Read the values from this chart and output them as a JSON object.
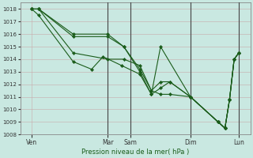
{
  "xlabel": "Pression niveau de la mer( hPa )",
  "bg_color": "#c9e8e1",
  "line_color": "#1a5c1a",
  "marker_color": "#1a5c1a",
  "ylim": [
    1008,
    1018.5
  ],
  "yticks": [
    1008,
    1009,
    1010,
    1011,
    1012,
    1013,
    1014,
    1015,
    1016,
    1017,
    1018
  ],
  "xlim": [
    0,
    100
  ],
  "xtick_positions": [
    5,
    38,
    48,
    74,
    95
  ],
  "xtick_labels": [
    "Ven",
    "Mar",
    "Sam",
    "Dim",
    "Lun"
  ],
  "vlines_x": [
    38,
    48,
    74,
    95
  ],
  "series": [
    {
      "x": [
        5,
        8,
        23,
        38,
        45,
        52,
        57,
        61,
        65,
        74,
        86,
        89,
        91,
        93,
        95
      ],
      "y": [
        1018,
        1018,
        1016,
        1016,
        1015,
        1013.2,
        1011.5,
        1011.2,
        1011.2,
        1011,
        1009,
        1008.5,
        1010.8,
        1014,
        1014.5
      ]
    },
    {
      "x": [
        5,
        8,
        23,
        38,
        45,
        52,
        57,
        61,
        65,
        74,
        86,
        89,
        91,
        93,
        95
      ],
      "y": [
        1018,
        1018,
        1015.8,
        1015.8,
        1015,
        1013,
        1011.2,
        1011.7,
        1012.2,
        1011,
        1009,
        1008.5,
        1010.8,
        1014,
        1014.5
      ]
    },
    {
      "x": [
        5,
        8,
        23,
        38,
        45,
        52,
        57,
        61,
        65,
        74,
        86,
        89,
        91,
        93,
        95
      ],
      "y": [
        1018,
        1018,
        1014.5,
        1014,
        1014,
        1013.5,
        1011.5,
        1012.2,
        1012.2,
        1011,
        1009,
        1008.5,
        1010.8,
        1014,
        1014.5
      ]
    },
    {
      "x": [
        5,
        8,
        23,
        31,
        36,
        44,
        52,
        57,
        61,
        74,
        86,
        89,
        91,
        93,
        95
      ],
      "y": [
        1018,
        1017.5,
        1013.8,
        1013.2,
        1014.2,
        1013.5,
        1012.8,
        1011.2,
        1015,
        1011,
        1009,
        1008.5,
        1010.8,
        1014,
        1014.5
      ]
    }
  ]
}
